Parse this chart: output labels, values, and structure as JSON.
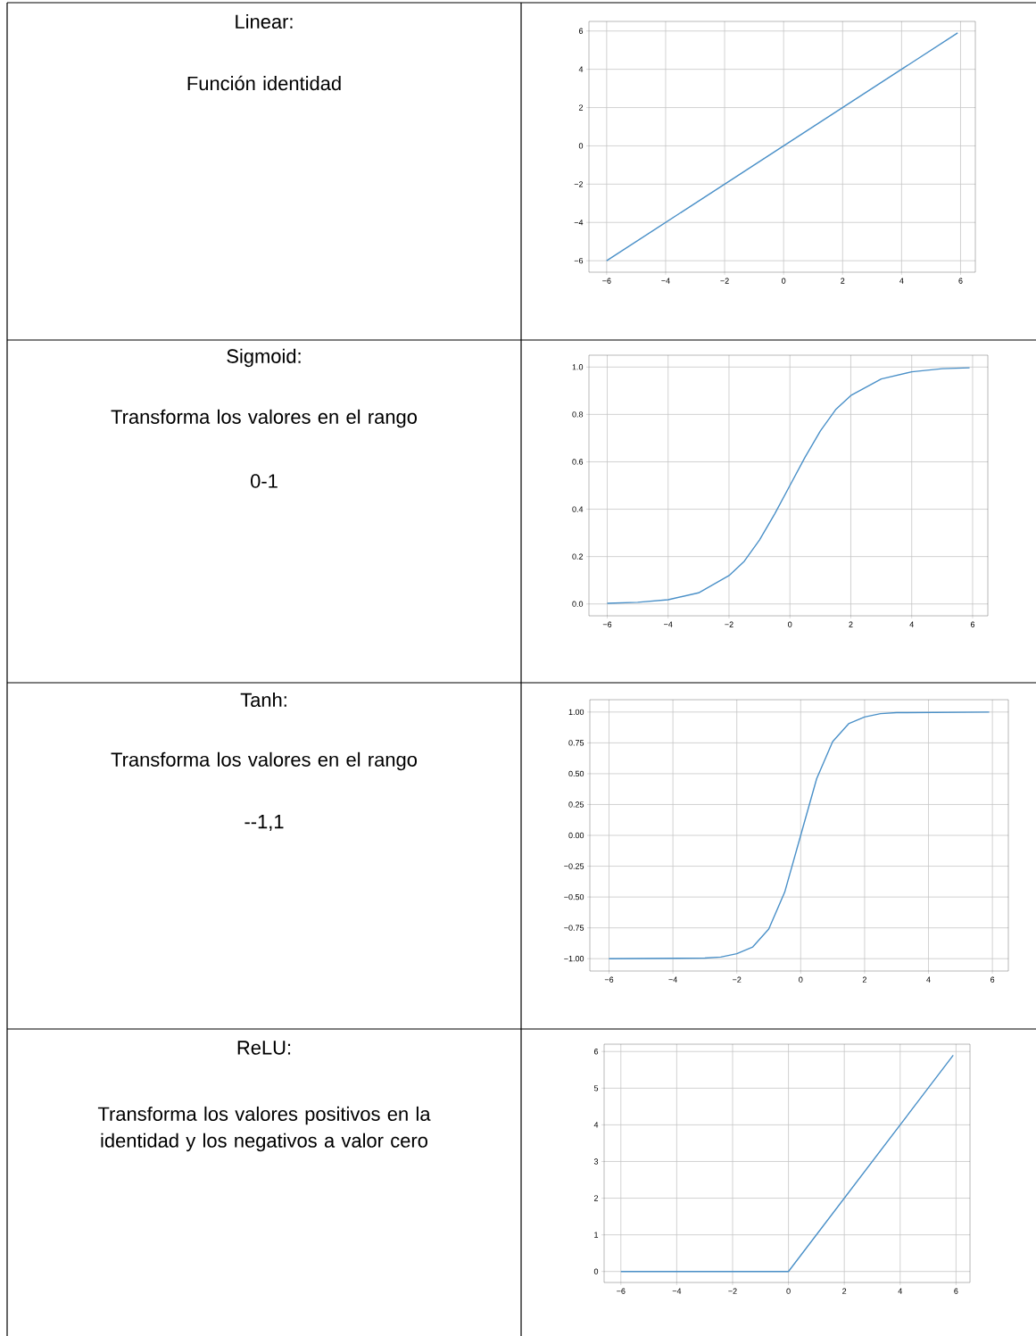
{
  "chart_data": [
    {
      "type": "line",
      "annotations": [
        "Linear:",
        "Función identidad"
      ],
      "x": [
        -6,
        5.9
      ],
      "series": [
        {
          "color": "#4a90c8",
          "values": [
            -6,
            5.9
          ]
        }
      ],
      "xlim": [
        -6.6,
        6.5
      ],
      "ylim": [
        -6.6,
        6.5
      ],
      "xticks": [
        {
          "value": -6,
          "label": "−6"
        },
        {
          "value": -4,
          "label": "−4"
        },
        {
          "value": -2,
          "label": "−2"
        },
        0,
        2,
        4,
        6
      ],
      "yticks": [
        {
          "value": -6,
          "label": "−6"
        },
        {
          "value": -4,
          "label": "−4"
        },
        {
          "value": -2,
          "label": "−2"
        },
        0,
        2,
        4,
        6
      ],
      "grid": true
    },
    {
      "type": "line",
      "annotations": [
        "Sigmoid:",
        "Transforma los valores en el rango",
        "0-1"
      ],
      "x": [
        -6,
        -5,
        -4,
        -3,
        -2,
        -1.5,
        -1,
        -0.5,
        0,
        0.5,
        1,
        1.5,
        2,
        3,
        4,
        5,
        5.9
      ],
      "series": [
        {
          "color": "#4a90c8",
          "values": [
            0.003,
            0.007,
            0.018,
            0.047,
            0.12,
            0.18,
            0.27,
            0.38,
            0.5,
            0.62,
            0.73,
            0.82,
            0.88,
            0.95,
            0.98,
            0.993,
            0.997
          ]
        }
      ],
      "xlim": [
        -6.6,
        6.5
      ],
      "ylim": [
        -0.05,
        1.05
      ],
      "xticks": [
        {
          "value": -6,
          "label": "−6"
        },
        {
          "value": -4,
          "label": "−4"
        },
        {
          "value": -2,
          "label": "−2"
        },
        0,
        2,
        4,
        6
      ],
      "yticks": [
        {
          "value": 0,
          "label": "0.0"
        },
        {
          "value": 0.2,
          "label": "0.2"
        },
        {
          "value": 0.4,
          "label": "0.4"
        },
        {
          "value": 0.6,
          "label": "0.6"
        },
        {
          "value": 0.8,
          "label": "0.8"
        },
        {
          "value": 1,
          "label": "1.0"
        }
      ],
      "grid": true
    },
    {
      "type": "line",
      "annotations": [
        "Tanh:",
        "Transforma los valores en el rango",
        "--1,1"
      ],
      "x": [
        -6,
        -3,
        -2.5,
        -2,
        -1.5,
        -1,
        -0.5,
        0,
        0.5,
        1,
        1.5,
        2,
        2.5,
        3,
        5.9
      ],
      "series": [
        {
          "color": "#4a90c8",
          "values": [
            -1,
            -0.995,
            -0.987,
            -0.96,
            -0.905,
            -0.76,
            -0.46,
            0,
            0.46,
            0.76,
            0.905,
            0.96,
            0.987,
            0.995,
            1
          ]
        }
      ],
      "xlim": [
        -6.6,
        6.5
      ],
      "ylim": [
        -1.1,
        1.1
      ],
      "xticks": [
        {
          "value": -6,
          "label": "−6"
        },
        {
          "value": -4,
          "label": "−4"
        },
        {
          "value": -2,
          "label": "−2"
        },
        0,
        2,
        4,
        6
      ],
      "yticks": [
        {
          "value": -1,
          "label": "−1.00"
        },
        {
          "value": -0.75,
          "label": "−0.75"
        },
        {
          "value": -0.5,
          "label": "−0.50"
        },
        {
          "value": -0.25,
          "label": "−0.25"
        },
        {
          "value": 0,
          "label": "0.00"
        },
        {
          "value": 0.25,
          "label": "0.25"
        },
        {
          "value": 0.5,
          "label": "0.50"
        },
        {
          "value": 0.75,
          "label": "0.75"
        },
        {
          "value": 1,
          "label": "1.00"
        }
      ],
      "grid": true
    },
    {
      "type": "line",
      "annotations": [
        "ReLU:",
        "Transforma los valores positivos en la identidad y los negativos a valor cero"
      ],
      "x": [
        -6,
        0,
        5.9
      ],
      "series": [
        {
          "color": "#4a90c8",
          "values": [
            0,
            0,
            5.9
          ]
        }
      ],
      "xlim": [
        -6.6,
        6.5
      ],
      "ylim": [
        -0.3,
        6.2
      ],
      "xticks": [
        {
          "value": -6,
          "label": "−6"
        },
        {
          "value": -4,
          "label": "−4"
        },
        {
          "value": -2,
          "label": "−2"
        },
        0,
        2,
        4,
        6
      ],
      "yticks": [
        0,
        1,
        2,
        3,
        4,
        5,
        6
      ],
      "grid": true
    }
  ]
}
